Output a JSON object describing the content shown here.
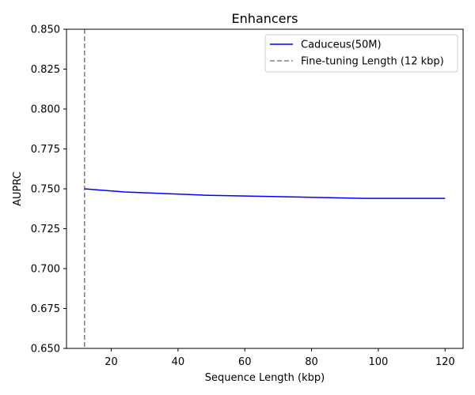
{
  "chart_data": {
    "type": "line",
    "title": "Enhancers",
    "xlabel": "Sequence Length (kbp)",
    "ylabel": "AUPRC",
    "xlim": [
      6.6,
      125.4
    ],
    "ylim": [
      0.65,
      0.85
    ],
    "xticks": [
      20,
      40,
      60,
      80,
      100,
      120
    ],
    "yticks": [
      0.65,
      0.675,
      0.7,
      0.725,
      0.75,
      0.775,
      0.8,
      0.825,
      0.85
    ],
    "xtick_labels": [
      "20",
      "40",
      "60",
      "80",
      "100",
      "120"
    ],
    "ytick_labels": [
      "0.650",
      "0.675",
      "0.700",
      "0.725",
      "0.750",
      "0.775",
      "0.800",
      "0.825",
      "0.850"
    ],
    "grid": false,
    "legend_position": "top-right",
    "series": [
      {
        "name": "Caduceus(50M)",
        "color": "#0000ff",
        "style": "solid",
        "x": [
          12,
          24,
          48,
          96,
          120
        ],
        "y": [
          0.75,
          0.748,
          0.746,
          0.744,
          0.744
        ]
      }
    ],
    "reference_lines": [
      {
        "name": "Fine-tuning Length (12 kbp)",
        "orientation": "vertical",
        "x": 12,
        "color": "#808080",
        "style": "dashed"
      }
    ]
  }
}
